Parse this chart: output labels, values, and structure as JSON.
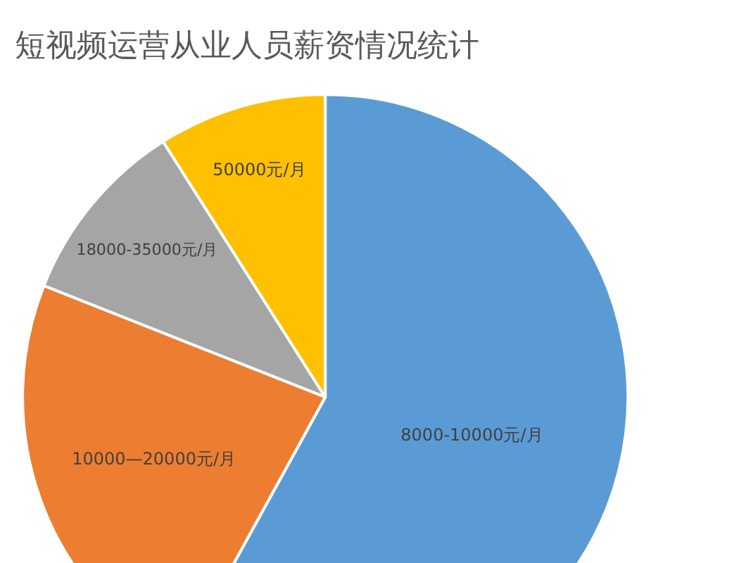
{
  "chart_data": {
    "type": "pie",
    "title": "短视频运营从业人员薪资情况统计",
    "categories": [
      "8000-10000元/月",
      "10000—20000元/月",
      "18000-35000元/月",
      "50000元/月"
    ],
    "values": [
      58,
      23,
      10,
      9
    ],
    "colors": [
      "#5b9bd5",
      "#ed7d31",
      "#a5a5a5",
      "#ffc000"
    ],
    "legend": false
  }
}
